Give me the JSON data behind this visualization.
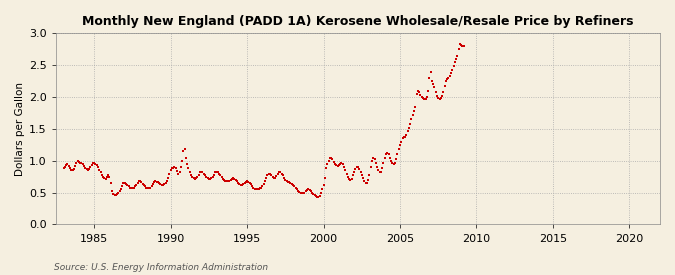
{
  "title": "Monthly New England (PADD 1A) Kerosene Wholesale/Resale Price by Refiners",
  "ylabel": "Dollars per Gallon",
  "source": "Source: U.S. Energy Information Administration",
  "background_color": "#f5efe0",
  "plot_bg_color": "#f5efe0",
  "line_color": "#cc0000",
  "marker": "s",
  "markersize": 2.0,
  "linewidth": 0,
  "ylim": [
    0.0,
    3.0
  ],
  "yticks": [
    0.0,
    0.5,
    1.0,
    1.5,
    2.0,
    2.5,
    3.0
  ],
  "xlim_start": 1982.5,
  "xlim_end": 2022,
  "xticks": [
    1985,
    1990,
    1995,
    2000,
    2005,
    2010,
    2015,
    2020
  ],
  "prices": [
    0.88,
    0.9,
    0.93,
    0.95,
    0.92,
    0.88,
    0.85,
    0.85,
    0.87,
    0.92,
    0.97,
    1.0,
    0.98,
    0.97,
    0.96,
    0.95,
    0.92,
    0.89,
    0.87,
    0.86,
    0.87,
    0.9,
    0.94,
    0.97,
    0.96,
    0.95,
    0.93,
    0.9,
    0.86,
    0.82,
    0.78,
    0.75,
    0.73,
    0.72,
    0.74,
    0.78,
    0.75,
    0.65,
    0.52,
    0.48,
    0.47,
    0.47,
    0.48,
    0.5,
    0.52,
    0.55,
    0.6,
    0.65,
    0.65,
    0.63,
    0.62,
    0.6,
    0.58,
    0.57,
    0.57,
    0.58,
    0.6,
    0.62,
    0.65,
    0.68,
    0.68,
    0.66,
    0.64,
    0.62,
    0.6,
    0.58,
    0.57,
    0.57,
    0.58,
    0.6,
    0.63,
    0.67,
    0.68,
    0.67,
    0.66,
    0.65,
    0.63,
    0.62,
    0.62,
    0.63,
    0.65,
    0.68,
    0.73,
    0.8,
    0.85,
    0.88,
    0.89,
    0.9,
    0.88,
    0.84,
    0.8,
    0.82,
    0.9,
    1.0,
    1.15,
    1.18,
    1.05,
    0.95,
    0.88,
    0.82,
    0.78,
    0.75,
    0.73,
    0.72,
    0.73,
    0.75,
    0.78,
    0.82,
    0.83,
    0.82,
    0.8,
    0.78,
    0.75,
    0.73,
    0.72,
    0.72,
    0.73,
    0.75,
    0.78,
    0.82,
    0.83,
    0.82,
    0.8,
    0.78,
    0.75,
    0.72,
    0.7,
    0.69,
    0.68,
    0.68,
    0.68,
    0.7,
    0.72,
    0.73,
    0.72,
    0.7,
    0.68,
    0.65,
    0.63,
    0.62,
    0.62,
    0.63,
    0.65,
    0.67,
    0.68,
    0.67,
    0.65,
    0.63,
    0.6,
    0.58,
    0.56,
    0.55,
    0.55,
    0.56,
    0.57,
    0.58,
    0.6,
    0.63,
    0.68,
    0.73,
    0.77,
    0.8,
    0.8,
    0.78,
    0.75,
    0.73,
    0.73,
    0.76,
    0.8,
    0.82,
    0.82,
    0.8,
    0.77,
    0.73,
    0.7,
    0.68,
    0.67,
    0.66,
    0.65,
    0.64,
    0.62,
    0.6,
    0.58,
    0.55,
    0.53,
    0.51,
    0.5,
    0.49,
    0.49,
    0.5,
    0.52,
    0.54,
    0.55,
    0.54,
    0.52,
    0.5,
    0.48,
    0.46,
    0.44,
    0.43,
    0.43,
    0.45,
    0.49,
    0.55,
    0.62,
    0.73,
    0.88,
    0.95,
    1.0,
    1.05,
    1.05,
    1.02,
    0.98,
    0.95,
    0.93,
    0.92,
    0.93,
    0.95,
    0.97,
    0.95,
    0.9,
    0.85,
    0.8,
    0.75,
    0.72,
    0.7,
    0.72,
    0.78,
    0.83,
    0.87,
    0.9,
    0.9,
    0.87,
    0.83,
    0.78,
    0.73,
    0.68,
    0.65,
    0.65,
    0.7,
    0.78,
    0.9,
    1.0,
    1.05,
    1.02,
    0.97,
    0.9,
    0.85,
    0.82,
    0.83,
    0.88,
    0.97,
    1.05,
    1.1,
    1.12,
    1.1,
    1.05,
    1.0,
    0.97,
    0.95,
    0.97,
    1.02,
    1.1,
    1.18,
    1.25,
    1.3,
    1.35,
    1.38,
    1.37,
    1.4,
    1.47,
    1.52,
    1.58,
    1.65,
    1.72,
    1.78,
    1.85,
    2.05,
    2.1,
    2.08,
    2.03,
    2.0,
    1.98,
    1.97,
    1.97,
    2.0,
    2.1,
    2.3,
    2.4,
    2.25,
    2.2,
    2.15,
    2.08,
    2.02,
    1.98,
    1.97,
    1.98,
    2.02,
    2.08,
    2.18,
    2.25,
    2.28,
    2.3,
    2.33,
    2.37,
    2.42,
    2.48,
    2.55,
    2.6,
    2.65,
    2.75,
    2.83,
    2.82,
    2.8,
    2.8
  ],
  "start_year": 1983,
  "start_month": 1
}
